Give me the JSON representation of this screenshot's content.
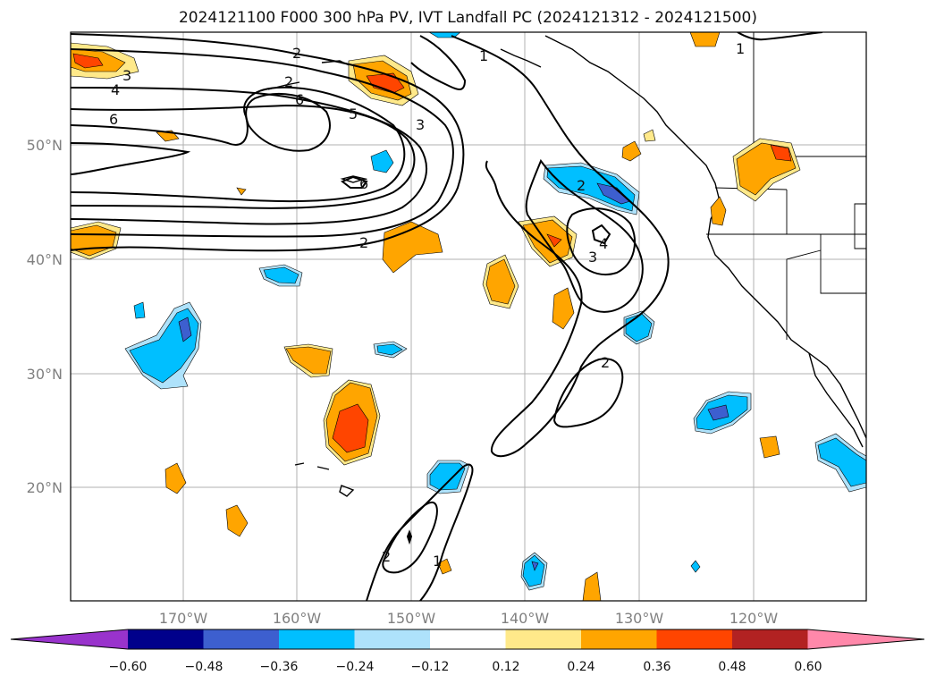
{
  "title": "2024121100 F000 300 hPa PV, IVT Landfall PC (2024121312 - 2024121500)",
  "lat_labels": [
    "50°N",
    "40°N",
    "30°N",
    "20°N"
  ],
  "lon_labels": [
    "170°W",
    "160°W",
    "150°W",
    "140°W",
    "130°W",
    "120°W"
  ],
  "contour_labels": [
    "1",
    "1",
    "2",
    "2",
    "2",
    "2",
    "2",
    "2",
    "3",
    "3",
    "3",
    "4",
    "4",
    "5",
    "6",
    "6",
    "6",
    "1"
  ],
  "colorbar": {
    "ticks": [
      "−0.60",
      "−0.48",
      "−0.36",
      "−0.24",
      "−0.12",
      "0.12",
      "0.24",
      "0.36",
      "0.48",
      "0.60"
    ],
    "colors": [
      "#9933cc",
      "#00008b",
      "#3d5fcf",
      "#00bfff",
      "#aee2fb",
      "#ffffff",
      "#ffe98a",
      "#ffa500",
      "#ff4500",
      "#b22222",
      "#ff88aa"
    ]
  }
}
